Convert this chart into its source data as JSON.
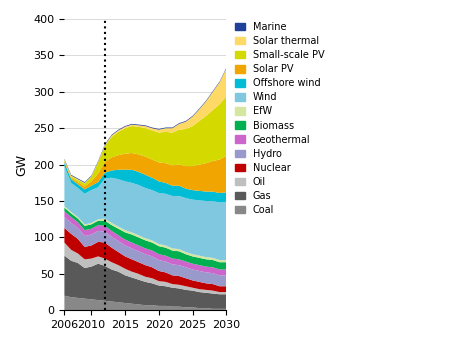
{
  "title": "",
  "ylabel": "GW",
  "ylim": [
    0,
    400
  ],
  "xlim": [
    2006,
    2030
  ],
  "yticks": [
    0,
    50,
    100,
    150,
    200,
    250,
    300,
    350,
    400
  ],
  "xticks": [
    2006,
    2010,
    2015,
    2020,
    2025,
    2030
  ],
  "dotted_line_x": 2012,
  "background_color": "#ffffff",
  "legend_labels": [
    "Marine",
    "Solar thermal",
    "Small-scale PV",
    "Solar PV",
    "Offshore wind",
    "Wind",
    "EfW",
    "Biomass",
    "Geothermal",
    "Hydro",
    "Nuclear",
    "Oil",
    "Gas",
    "Coal"
  ],
  "legend_colors": [
    "#1f3f99",
    "#ffd966",
    "#d4d900",
    "#f0a500",
    "#00bcd4",
    "#80c8e0",
    "#d4e6a0",
    "#00b050",
    "#cc66cc",
    "#9999cc",
    "#c00000",
    "#bfbfbf",
    "#595959",
    "#888888"
  ],
  "series_order": [
    "Coal",
    "Gas",
    "Oil",
    "Nuclear",
    "Hydro",
    "Geothermal",
    "Biomass",
    "EfW",
    "Wind",
    "Offshore wind",
    "Solar PV",
    "Small-scale PV",
    "Solar thermal",
    "Marine"
  ],
  "colors": {
    "Coal": "#888888",
    "Gas": "#595959",
    "Oil": "#bfbfbf",
    "Nuclear": "#c00000",
    "Hydro": "#9999cc",
    "Geothermal": "#cc66cc",
    "Biomass": "#00b050",
    "EfW": "#d4e6a0",
    "Wind": "#80c8e0",
    "Offshore wind": "#00bcd4",
    "Solar PV": "#f0a500",
    "Small-scale PV": "#d4d900",
    "Solar thermal": "#ffd966",
    "Marine": "#1f3f99"
  },
  "years": [
    2006,
    2007,
    2008,
    2009,
    2010,
    2011,
    2012,
    2013,
    2014,
    2015,
    2016,
    2017,
    2018,
    2019,
    2020,
    2021,
    2022,
    2023,
    2024,
    2025,
    2026,
    2027,
    2028,
    2029,
    2030
  ],
  "data": {
    "Coal": [
      20,
      18,
      17,
      16,
      15,
      14,
      13,
      12,
      11,
      10,
      9,
      8,
      7,
      7,
      6,
      6,
      5,
      5,
      4,
      4,
      3,
      3,
      2,
      2,
      2
    ],
    "Gas": [
      55,
      50,
      48,
      42,
      45,
      50,
      48,
      44,
      42,
      38,
      36,
      34,
      32,
      30,
      28,
      27,
      26,
      25,
      24,
      23,
      22,
      21,
      21,
      20,
      20
    ],
    "Oil": [
      18,
      15,
      13,
      12,
      11,
      10,
      10,
      10,
      9,
      9,
      8,
      8,
      7,
      7,
      6,
      6,
      5,
      5,
      5,
      4,
      4,
      4,
      4,
      3,
      3
    ],
    "Nuclear": [
      20,
      22,
      20,
      17,
      18,
      20,
      22,
      20,
      18,
      17,
      17,
      16,
      16,
      15,
      14,
      13,
      12,
      12,
      11,
      10,
      10,
      9,
      9,
      8,
      8
    ],
    "Hydro": [
      15,
      15,
      15,
      15,
      15,
      15,
      15,
      15,
      15,
      15,
      15,
      15,
      15,
      15,
      15,
      15,
      15,
      15,
      15,
      15,
      15,
      15,
      15,
      15,
      15
    ],
    "Geothermal": [
      8,
      8,
      8,
      8,
      8,
      8,
      8,
      8,
      8,
      8,
      8,
      8,
      8,
      8,
      8,
      8,
      8,
      8,
      8,
      8,
      8,
      8,
      8,
      8,
      8
    ],
    "Biomass": [
      5,
      5,
      5,
      6,
      6,
      6,
      7,
      8,
      9,
      10,
      11,
      11,
      11,
      11,
      11,
      11,
      11,
      11,
      10,
      10,
      10,
      10,
      10,
      10,
      10
    ],
    "EfW": [
      2,
      2,
      2,
      2,
      2,
      2,
      3,
      3,
      3,
      3,
      3,
      3,
      3,
      3,
      3,
      3,
      3,
      3,
      3,
      3,
      3,
      3,
      3,
      3,
      3
    ],
    "Wind": [
      55,
      40,
      40,
      42,
      45,
      44,
      55,
      62,
      65,
      67,
      68,
      69,
      69,
      69,
      70,
      71,
      72,
      73,
      74,
      75,
      76,
      77,
      78,
      79,
      80
    ],
    "Offshore wind": [
      5,
      5,
      5,
      6,
      6,
      7,
      8,
      10,
      13,
      16,
      18,
      18,
      18,
      17,
      16,
      15,
      14,
      14,
      13,
      13,
      13,
      13,
      13,
      13,
      13
    ],
    "Solar PV": [
      2,
      2,
      3,
      4,
      6,
      12,
      15,
      18,
      20,
      22,
      23,
      24,
      25,
      25,
      26,
      27,
      28,
      29,
      31,
      33,
      36,
      39,
      42,
      46,
      50
    ],
    "Small-scale PV": [
      1,
      2,
      3,
      4,
      6,
      15,
      22,
      28,
      32,
      35,
      37,
      38,
      39,
      40,
      41,
      43,
      45,
      48,
      51,
      55,
      60,
      65,
      70,
      76,
      82
    ],
    "Solar thermal": [
      1,
      1,
      1,
      1,
      1,
      1,
      1,
      2,
      2,
      2,
      2,
      2,
      3,
      3,
      4,
      5,
      6,
      8,
      10,
      13,
      16,
      20,
      25,
      30,
      38
    ],
    "Marine": [
      1,
      1,
      1,
      1,
      1,
      1,
      1,
      1,
      1,
      1,
      1,
      1,
      1,
      1,
      1,
      1,
      1,
      1,
      1,
      1,
      1,
      1,
      1,
      1,
      1
    ]
  }
}
